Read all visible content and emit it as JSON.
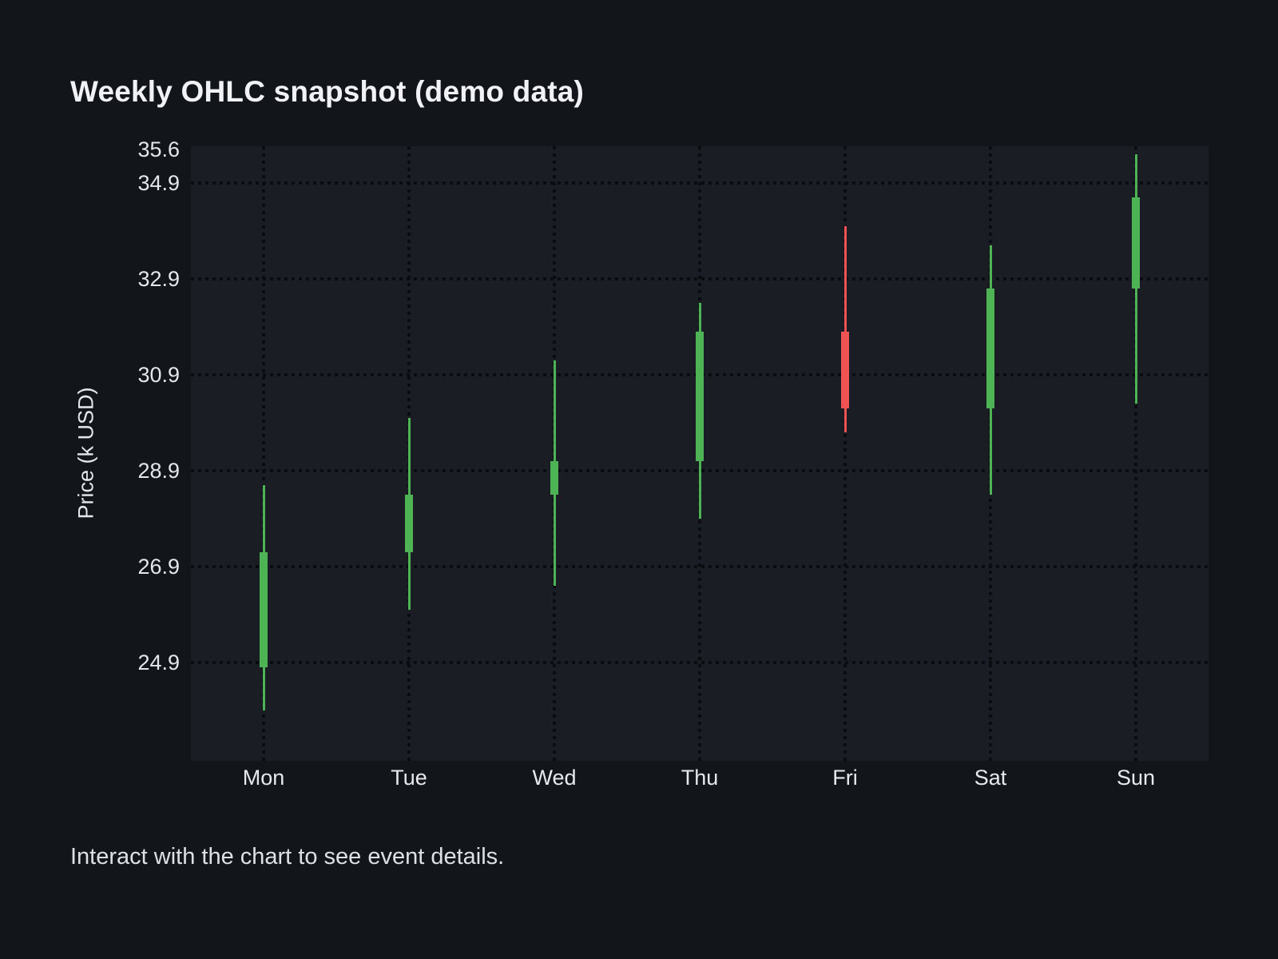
{
  "page": {
    "title": "Weekly OHLC snapshot (demo data)",
    "footer": "Interact with the chart to see event details."
  },
  "chart_data": {
    "type": "candlestick",
    "title": "Weekly OHLC snapshot (demo data)",
    "xlabel": "",
    "ylabel": "Price (k USD)",
    "categories": [
      "Mon",
      "Tue",
      "Wed",
      "Thu",
      "Fri",
      "Sat",
      "Sun"
    ],
    "series": [
      {
        "name": "Weekly OHLC",
        "points": [
          {
            "day": "Mon",
            "open": 24.8,
            "high": 28.6,
            "low": 23.9,
            "close": 27.2,
            "direction": "up"
          },
          {
            "day": "Tue",
            "open": 27.2,
            "high": 30.0,
            "low": 26.0,
            "close": 28.4,
            "direction": "up"
          },
          {
            "day": "Wed",
            "open": 28.4,
            "high": 31.2,
            "low": 26.5,
            "close": 29.1,
            "direction": "up"
          },
          {
            "day": "Thu",
            "open": 29.1,
            "high": 32.4,
            "low": 27.9,
            "close": 31.8,
            "direction": "up"
          },
          {
            "day": "Fri",
            "open": 31.8,
            "high": 34.0,
            "low": 29.7,
            "close": 30.2,
            "direction": "down"
          },
          {
            "day": "Sat",
            "open": 30.2,
            "high": 33.6,
            "low": 28.4,
            "close": 32.7,
            "direction": "up"
          },
          {
            "day": "Sun",
            "open": 32.7,
            "high": 35.5,
            "low": 30.3,
            "close": 34.6,
            "direction": "up"
          }
        ]
      }
    ],
    "yticks": [
      "35.6",
      "34.9",
      "32.9",
      "30.9",
      "28.9",
      "26.9",
      "24.9"
    ],
    "ytick_values": [
      35.6,
      34.9,
      32.9,
      30.9,
      28.9,
      26.9,
      24.9
    ],
    "ylim": [
      22.85,
      35.67
    ],
    "grid": "dotted",
    "legend": "none",
    "colors": {
      "up": "#4db355",
      "down": "#ee5253",
      "background": "#12151a",
      "plot_background": "#1a1d23",
      "gridline": "#0a0c10",
      "text": "#e7e9ec"
    }
  }
}
